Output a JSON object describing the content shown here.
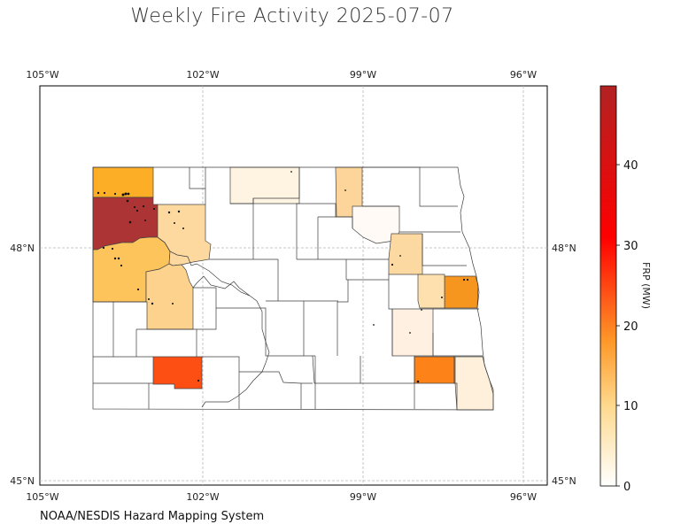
{
  "title": "Weekly Fire Activity 2025-07-07",
  "source": "NOAA/NESDIS Hazard Mapping System",
  "map": {
    "region": "North Dakota counties",
    "extent": {
      "lon_min": -105,
      "lon_max": -95.5,
      "lat_min": 45,
      "lat_max": 49.8
    },
    "lon_ticks": [
      "105°W",
      "102°W",
      "99°W",
      "96°W"
    ],
    "lat_ticks": [
      "48°N",
      "45°N"
    ],
    "gridlines": "dashed, light gray",
    "county_outline_color": "#444444"
  },
  "colorbar": {
    "label": "FRP (MW)",
    "ticks": [
      "0",
      "10",
      "20",
      "30",
      "40"
    ],
    "range": [
      0,
      49
    ],
    "colors": [
      "#ffffff",
      "#fed98e",
      "#fe9929",
      "#ff0000",
      "#b22222"
    ]
  },
  "shaded_counties": [
    {
      "name": "Divide",
      "color": "#fdae27"
    },
    {
      "name": "Williams",
      "color": "#ad3434"
    },
    {
      "name": "McKenzie",
      "color": "#fec45c"
    },
    {
      "name": "Mountrail",
      "color": "#fdd9a0"
    },
    {
      "name": "Dunn",
      "color": "#fdd28c"
    },
    {
      "name": "Burke",
      "color": "#fff3e2"
    },
    {
      "name": "Bottineau",
      "color": "#fdd59a"
    },
    {
      "name": "Ramsey",
      "color": "#fffaf5"
    },
    {
      "name": "Nelson",
      "color": "#fdd9a2"
    },
    {
      "name": "Grand Forks",
      "color": "#f7961f"
    },
    {
      "name": "Traill",
      "color": "#fee0ae"
    },
    {
      "name": "Barnes",
      "color": "#fff0e2"
    },
    {
      "name": "Hettinger",
      "color": "#fd4e14"
    },
    {
      "name": "Sargent",
      "color": "#fd8217"
    },
    {
      "name": "Richland",
      "color": "#fff0db"
    }
  ]
}
